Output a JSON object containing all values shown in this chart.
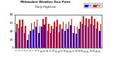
{
  "title": "Milwaukee Weather Dew Point",
  "subtitle": "Daily High/Low",
  "background_color": "#ffffff",
  "plot_bg": "#ffffff",
  "high_color": "#ff0000",
  "low_color": "#0000ff",
  "highs": [
    58,
    68,
    68,
    52,
    32,
    60,
    62,
    68,
    52,
    70,
    74,
    58,
    52,
    62,
    68,
    56,
    62,
    58,
    62,
    70,
    52,
    50,
    62,
    76,
    72,
    70,
    76,
    70,
    62,
    58
  ],
  "lows": [
    38,
    48,
    50,
    35,
    18,
    40,
    44,
    50,
    36,
    50,
    56,
    40,
    36,
    46,
    50,
    38,
    46,
    40,
    46,
    54,
    36,
    33,
    46,
    58,
    54,
    50,
    58,
    54,
    46,
    40
  ],
  "labels": [
    "1",
    "2",
    "3",
    "4",
    "5",
    "6",
    "7",
    "8",
    "9",
    "10",
    "11",
    "12",
    "13",
    "14",
    "15",
    "16",
    "17",
    "18",
    "19",
    "20",
    "21",
    "22",
    "23",
    "24",
    "25",
    "26",
    "27",
    "28",
    "29",
    "30"
  ],
  "ylim": [
    0,
    80
  ],
  "yticks": [
    0,
    20,
    40,
    60,
    80
  ],
  "dashed_vline_x": 22.5,
  "bar_width": 0.38,
  "legend_labels": [
    "Low",
    "High"
  ]
}
